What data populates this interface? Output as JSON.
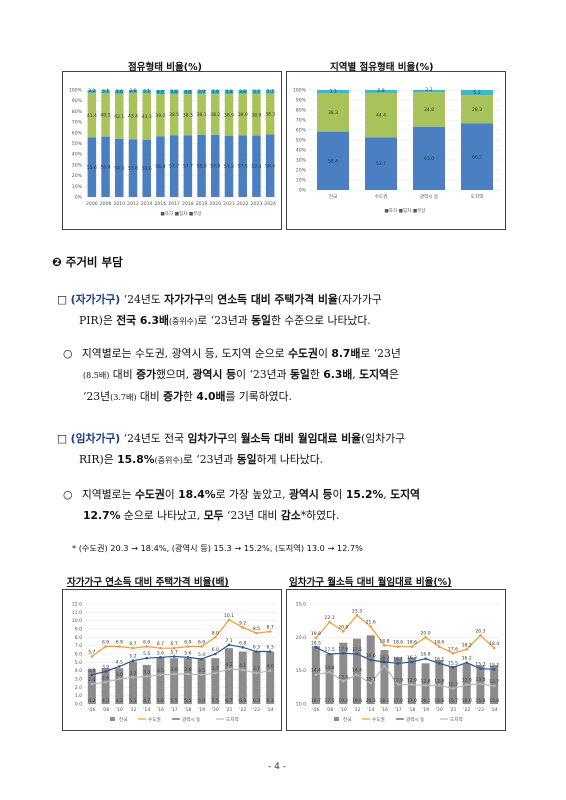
{
  "top_charts": {
    "left_title": "점유형태 비율(%)",
    "right_title": "지역별 점유형태 비율(%)",
    "left_legend": "■자가 ■임차 ■무상",
    "right_legend": "■자가 ■임차 ■무상"
  },
  "section": {
    "number": "❷",
    "title": "주거비 부담"
  },
  "bullet1": {
    "box": "□",
    "tag": "(자가가구)",
    "t1": " ‘24년도 ",
    "b1": "자가가구",
    "t2": "의 ",
    "b2": "연소득 대비 주택가격 비율",
    "t3": "(자가가구",
    "t4": "PIR)은 ",
    "b3": "전국 6.3배",
    "s1": "(중위수)",
    "t5": "로 ‘23년과 ",
    "b4": "동일",
    "t6": "한 수준으로 나타났다."
  },
  "sub1": {
    "mark": "○",
    "t1": "지역별로는 수도권, 광역시 등, 도지역 순으로 ",
    "b1": "수도권",
    "t2": "이 ",
    "b2": "8.7배",
    "t3": "로 ‘23년",
    "s1": "(8.5배)",
    "t4": " 대비 ",
    "b3": "증가",
    "t5": "했으며, ",
    "b4": "광역시 등",
    "t6": "이 ‘23년과 ",
    "b5": "동일",
    "t7": "한 ",
    "b6": "6.3배",
    "t8": ", ",
    "b7": "도지역",
    "t9": "은",
    "t10": "‘23년",
    "s2": "(3.7배)",
    "t11": " 대비 ",
    "b8": "증가",
    "t12": "한 ",
    "b9": "4.0배",
    "t13": "를 기록하였다."
  },
  "bullet2": {
    "box": "□",
    "tag": "(임차가구)",
    "t1": " ‘24년도 전국 ",
    "b1": "임차가구",
    "t2": "의 ",
    "b2": "월소득 대비 월임대료 비율",
    "t3": "(임차가구",
    "t4": "RIR)은 ",
    "b3": "15.8%",
    "s1": "(중위수)",
    "t5": "로 ‘23년과 ",
    "b4": "동일",
    "t6": "하게 나타났다."
  },
  "sub2": {
    "mark": "○",
    "t1": "지역별로는 ",
    "b1": "수도권",
    "t2": "이 ",
    "b2": "18.4%",
    "t3": "로 가장 높았고, ",
    "b3": "광역시 등",
    "t4": "이 ",
    "b4": "15.2%",
    "t5": ", ",
    "b5": "도지역",
    "b6": "12.7%",
    "t6": " 순으로 나타났고, ",
    "b7": "모두",
    "t7": " ‘23년 대비 ",
    "b8": "감소",
    "t8": "*하였다."
  },
  "footnote": "* (수도권) 20.3 → 18.4%, (광역시 등) 15.3 → 15.2%, (도지역) 13.0 → 12.7%",
  "bottom_charts": {
    "left_title": "자가가구 연소득 대비 주택가격 비율(배)",
    "right_title": "임차가구 월소득 대비 월임대료 비율(%)"
  },
  "page_number": "- 4 -",
  "chart_data": [
    {
      "type": "bar",
      "stacked": true,
      "categories": [
        "2006",
        "2008",
        "2010",
        "2012",
        "2014",
        "2016",
        "2017",
        "2018",
        "2019",
        "2020",
        "2021",
        "2022",
        "2023",
        "2024"
      ],
      "series": [
        {
          "name": "자가",
          "values": [
            55.6,
            56.4,
            54.3,
            53.8,
            53.6,
            56.8,
            57.7,
            57.7,
            58.0,
            57.9,
            57.3,
            57.5,
            57.4,
            58.4
          ],
          "color": "#4a7fc1"
        },
        {
          "name": "임차",
          "values": [
            41.4,
            40.5,
            42.1,
            43.4,
            43.3,
            39.2,
            38.5,
            38.3,
            38.1,
            38.2,
            38.9,
            38.9,
            38.9,
            38.3
          ],
          "color": "#a9c25a"
        },
        {
          "name": "무상",
          "values": [
            3.0,
            3.1,
            3.6,
            2.8,
            3.1,
            4.0,
            3.8,
            4.0,
            3.9,
            3.9,
            3.8,
            3.6,
            3.7,
            3.3
          ],
          "color": "#37b8d6"
        }
      ],
      "ylim": [
        0,
        100
      ]
    },
    {
      "type": "bar",
      "stacked": true,
      "categories": [
        "전국",
        "수도권",
        "광역시 등",
        "도지역"
      ],
      "series": [
        {
          "name": "자가",
          "values": [
            58.4,
            52.7,
            63.0,
            66.5
          ],
          "color": "#4a7fc1"
        },
        {
          "name": "임차",
          "values": [
            38.3,
            44.4,
            34.8,
            28.3
          ],
          "color": "#a9c25a"
        },
        {
          "name": "무상",
          "values": [
            3.3,
            2.9,
            2.2,
            5.2
          ],
          "color": "#37b8d6"
        }
      ],
      "ylim": [
        0,
        100
      ]
    },
    {
      "type": "bar",
      "categories": [
        "'06",
        "'08",
        "'10",
        "'12",
        "'14",
        "'16",
        "'17",
        "'18",
        "'19",
        "'20",
        "'21",
        "'22",
        "'23",
        "'24"
      ],
      "bars": {
        "name": "전국",
        "values": [
          4.2,
          4.3,
          4.3,
          5.1,
          4.7,
          5.6,
          5.5,
          5.5,
          5.4,
          5.5,
          6.7,
          6.3,
          6.3,
          6.3
        ]
      },
      "lines": [
        {
          "name": "수도권",
          "values": [
            5.7,
            6.9,
            6.9,
            6.7,
            6.9,
            6.7,
            6.7,
            6.9,
            6.9,
            8.0,
            10.1,
            9.2,
            8.5,
            8.7
          ],
          "color": "#f39a2d"
        },
        {
          "name": "광역시 등",
          "values": [
            3.5,
            3.9,
            4.5,
            5.2,
            5.5,
            5.6,
            5.7,
            5.6,
            5.4,
            6.0,
            7.1,
            6.8,
            6.3,
            6.3
          ],
          "color": "#2f5597"
        },
        {
          "name": "도지역",
          "values": [
            2.4,
            2.6,
            3.0,
            3.2,
            3.3,
            3.5,
            3.6,
            3.6,
            3.5,
            3.7,
            4.2,
            4.1,
            3.7,
            4.0
          ],
          "color": "#b8b8b8"
        }
      ],
      "ylim": [
        0,
        12
      ]
    },
    {
      "type": "bar",
      "categories": [
        "'06",
        "'08",
        "'10",
        "'12",
        "'14",
        "'16",
        "'17",
        "'18",
        "'19",
        "'20",
        "'21",
        "'22",
        "'23",
        "'24"
      ],
      "bars": {
        "name": "전국",
        "values": [
          18.7,
          17.5,
          19.2,
          19.8,
          20.3,
          18.1,
          17.0,
          17.0,
          16.1,
          16.6,
          15.7,
          16.0,
          15.8,
          15.8
        ]
      },
      "lines": [
        {
          "name": "수도권",
          "values": [
            19.9,
            22.3,
            20.9,
            23.3,
            21.6,
            18.8,
            18.6,
            18.6,
            20.0,
            18.6,
            17.6,
            18.2,
            20.3,
            18.4
          ],
          "color": "#f39a2d"
        },
        {
          "name": "광역시 등",
          "values": [
            18.5,
            17.5,
            17.6,
            17.5,
            16.6,
            16.3,
            16.1,
            16.3,
            16.8,
            16.1,
            15.5,
            16.2,
            15.3,
            15.2
          ],
          "color": "#2f5597"
        },
        {
          "name": "도지역",
          "values": [
            14.4,
            14.8,
            13.4,
            14.4,
            13.1,
            15.7,
            12.9,
            12.9,
            12.8,
            12.8,
            12.3,
            12.9,
            13.0,
            12.7
          ],
          "color": "#b8b8b8"
        }
      ],
      "ylim": [
        10,
        25
      ]
    }
  ]
}
